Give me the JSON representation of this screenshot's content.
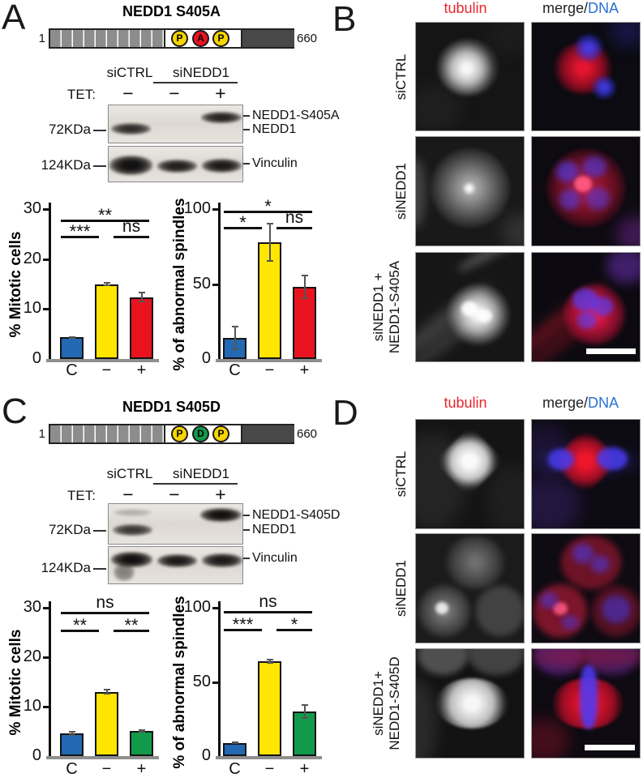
{
  "colors": {
    "bar_blue": "#2268b2",
    "bar_yellow": "#ffe500",
    "bar_red": "#e8131f",
    "bar_green": "#119a4a",
    "tubulin_red": "#e8252b",
    "dna_blue": "#2b6fd4"
  },
  "panels": {
    "A": {
      "letter": "A",
      "title": "NEDD1 S405A",
      "construct": {
        "start": "1",
        "end": "660",
        "sites": [
          {
            "letter": "P",
            "color": "#f7d500"
          },
          {
            "letter": "A",
            "color": "#e8131f"
          },
          {
            "letter": "P",
            "color": "#f7d500"
          }
        ]
      },
      "blot": {
        "group1": "siCTRL",
        "group2": "siNEDD1",
        "tet": "TET:",
        "signs": [
          "−",
          "−",
          "+"
        ],
        "marker_top": "72KDa",
        "marker_bottom": "124KDa",
        "band_top": "NEDD1-S405A",
        "band_mid": "NEDD1",
        "band_loading": "Vinculin"
      }
    },
    "B": {
      "letter": "B",
      "header_tubulin": "tubulin",
      "header_merge": "merge/",
      "header_dna": "DNA",
      "row1": "siCTRL",
      "row2": "siNEDD1",
      "row3_line1": "siNEDD1 +",
      "row3_line2": "NEDD1-S405A"
    },
    "C": {
      "letter": "C",
      "title": "NEDD1 S405D",
      "construct": {
        "start": "1",
        "end": "660",
        "sites": [
          {
            "letter": "P",
            "color": "#f7d500"
          },
          {
            "letter": "D",
            "color": "#119a4a"
          },
          {
            "letter": "P",
            "color": "#f7d500"
          }
        ]
      },
      "blot": {
        "group1": "siCTRL",
        "group2": "siNEDD1",
        "tet": "TET:",
        "signs": [
          "−",
          "−",
          "+"
        ],
        "marker_top": "72KDa",
        "marker_bottom": "124KDa",
        "band_top": "NEDD1-S405D",
        "band_mid": "NEDD1",
        "band_loading": "Vinculin"
      }
    },
    "D": {
      "letter": "D",
      "header_tubulin": "tubulin",
      "header_merge": "merge/",
      "header_dna": "DNA",
      "row1": "siCTRL",
      "row2": "siNEDD1",
      "row3_line1": "siNEDD1+",
      "row3_line2": "NEDD1-S405D"
    }
  },
  "chart_data": [
    {
      "type": "bar",
      "panel": "A-left",
      "title": "",
      "ylabel": "% Mitotic cells",
      "xlabel": "",
      "categories": [
        "C",
        "−",
        "+"
      ],
      "values": [
        4.3,
        15,
        12.4
      ],
      "errors": [
        0.3,
        0.4,
        1.1
      ],
      "colors": [
        "#2268b2",
        "#ffe500",
        "#e8131f"
      ],
      "ylim": [
        0,
        30
      ],
      "yticks": [
        0,
        10,
        20,
        30
      ],
      "grid": false,
      "significance": [
        {
          "from": 0,
          "to": 1,
          "label": "***"
        },
        {
          "from": 1,
          "to": 2,
          "label": "ns"
        },
        {
          "from": 0,
          "to": 2,
          "label": "**"
        }
      ]
    },
    {
      "type": "bar",
      "panel": "A-right",
      "title": "",
      "ylabel": "% of abnormal spindles",
      "xlabel": "",
      "categories": [
        "C",
        "−",
        "+"
      ],
      "values": [
        14,
        78,
        48
      ],
      "errors": [
        8,
        13,
        8
      ],
      "colors": [
        "#2268b2",
        "#ffe500",
        "#e8131f"
      ],
      "ylim": [
        0,
        100
      ],
      "yticks": [
        0,
        50,
        100
      ],
      "grid": false,
      "significance": [
        {
          "from": 0,
          "to": 1,
          "label": "*"
        },
        {
          "from": 1,
          "to": 2,
          "label": "ns"
        },
        {
          "from": 0,
          "to": 2,
          "label": "*"
        }
      ]
    },
    {
      "type": "bar",
      "panel": "C-left",
      "title": "",
      "ylabel": "% Mitotic cells",
      "xlabel": "",
      "categories": [
        "C",
        "−",
        "+"
      ],
      "values": [
        4.6,
        13,
        5.1
      ],
      "errors": [
        0.5,
        0.6,
        0.3
      ],
      "colors": [
        "#2268b2",
        "#ffe500",
        "#119a4a"
      ],
      "ylim": [
        0,
        30
      ],
      "yticks": [
        0,
        10,
        20,
        30
      ],
      "grid": false,
      "significance": [
        {
          "from": 0,
          "to": 1,
          "label": "**"
        },
        {
          "from": 1,
          "to": 2,
          "label": "**"
        },
        {
          "from": 0,
          "to": 2,
          "label": "ns"
        }
      ]
    },
    {
      "type": "bar",
      "panel": "C-right",
      "title": "",
      "ylabel": "% of abnormal spindles",
      "xlabel": "",
      "categories": [
        "C",
        "−",
        "+"
      ],
      "values": [
        9,
        64,
        30
      ],
      "errors": [
        0.8,
        1.5,
        5
      ],
      "colors": [
        "#2268b2",
        "#ffe500",
        "#119a4a"
      ],
      "ylim": [
        0,
        100
      ],
      "yticks": [
        0,
        50,
        100
      ],
      "grid": false,
      "significance": [
        {
          "from": 0,
          "to": 1,
          "label": "***"
        },
        {
          "from": 1,
          "to": 2,
          "label": "*"
        },
        {
          "from": 0,
          "to": 2,
          "label": "ns"
        }
      ]
    }
  ]
}
